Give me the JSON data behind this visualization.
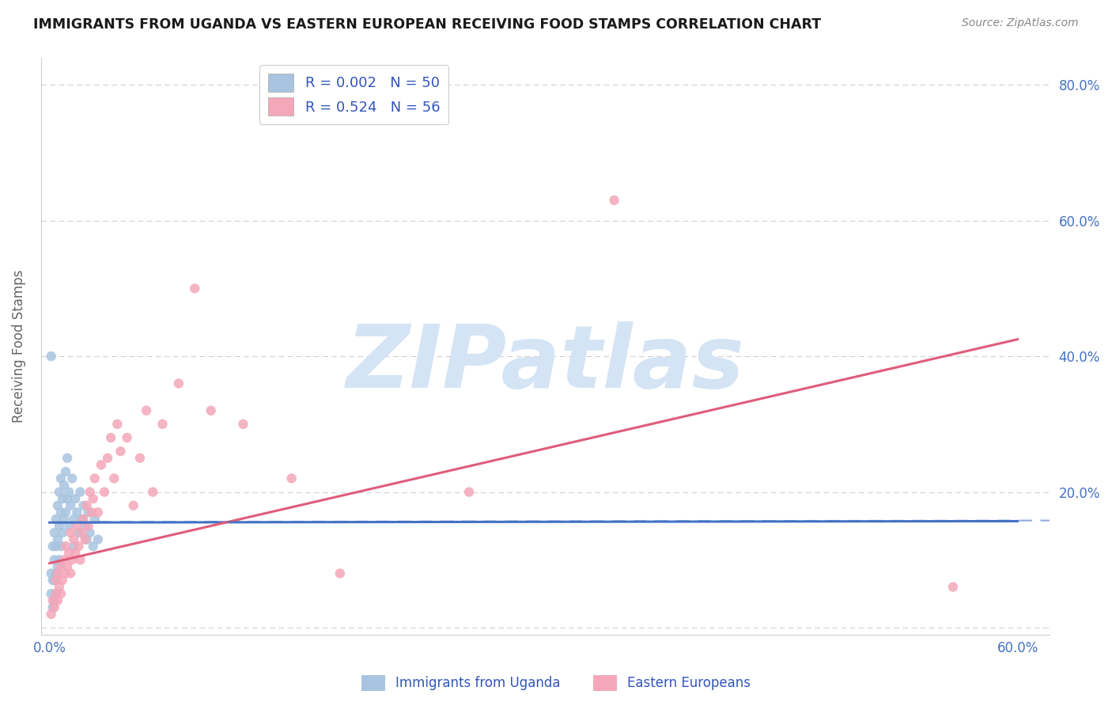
{
  "title": "IMMIGRANTS FROM UGANDA VS EASTERN EUROPEAN RECEIVING FOOD STAMPS CORRELATION CHART",
  "source": "Source: ZipAtlas.com",
  "ylabel": "Receiving Food Stamps",
  "ytick_vals": [
    0.0,
    0.2,
    0.4,
    0.6,
    0.8
  ],
  "ytick_labels": [
    "",
    "20.0%",
    "40.0%",
    "60.0%",
    "80.0%"
  ],
  "xtick_vals": [
    0.0,
    0.6
  ],
  "xtick_labels": [
    "0.0%",
    "60.0%"
  ],
  "xlim": [
    -0.005,
    0.62
  ],
  "ylim": [
    -0.01,
    0.84
  ],
  "uganda_R": 0.002,
  "uganda_N": 50,
  "eastern_R": 0.524,
  "eastern_N": 56,
  "uganda_color": "#a8c4e0",
  "eastern_color": "#f4a7b9",
  "uganda_line_color": "#4472c4",
  "eastern_line_color": "#e05c7a",
  "title_color": "#1a1a1a",
  "source_color": "#888888",
  "legend_text_color": "#3355bb",
  "axis_color": "#cccccc",
  "tick_color": "#4472c4",
  "grid_color": "#cccccc",
  "watermark_color": "#d4e4f5",
  "watermark_text": "ZIPatlas",
  "uganda_x": [
    0.001,
    0.001,
    0.002,
    0.002,
    0.002,
    0.003,
    0.003,
    0.003,
    0.003,
    0.004,
    0.004,
    0.004,
    0.004,
    0.005,
    0.005,
    0.005,
    0.006,
    0.006,
    0.006,
    0.007,
    0.007,
    0.007,
    0.008,
    0.008,
    0.009,
    0.009,
    0.01,
    0.01,
    0.011,
    0.011,
    0.012,
    0.012,
    0.013,
    0.014,
    0.015,
    0.015,
    0.016,
    0.017,
    0.018,
    0.019,
    0.02,
    0.021,
    0.022,
    0.023,
    0.024,
    0.025,
    0.027,
    0.028,
    0.03,
    0.001
  ],
  "uganda_y": [
    0.08,
    0.05,
    0.12,
    0.07,
    0.03,
    0.14,
    0.1,
    0.07,
    0.04,
    0.16,
    0.12,
    0.08,
    0.05,
    0.18,
    0.13,
    0.09,
    0.2,
    0.15,
    0.1,
    0.22,
    0.17,
    0.12,
    0.19,
    0.14,
    0.21,
    0.16,
    0.23,
    0.17,
    0.25,
    0.19,
    0.2,
    0.15,
    0.18,
    0.22,
    0.16,
    0.12,
    0.19,
    0.17,
    0.14,
    0.2,
    0.16,
    0.18,
    0.15,
    0.13,
    0.17,
    0.14,
    0.12,
    0.16,
    0.13,
    0.4
  ],
  "eastern_x": [
    0.001,
    0.002,
    0.003,
    0.004,
    0.004,
    0.005,
    0.005,
    0.006,
    0.007,
    0.007,
    0.008,
    0.009,
    0.01,
    0.01,
    0.011,
    0.012,
    0.013,
    0.013,
    0.014,
    0.015,
    0.016,
    0.017,
    0.018,
    0.019,
    0.02,
    0.021,
    0.022,
    0.023,
    0.024,
    0.025,
    0.026,
    0.027,
    0.028,
    0.03,
    0.032,
    0.034,
    0.036,
    0.038,
    0.04,
    0.042,
    0.044,
    0.048,
    0.052,
    0.056,
    0.06,
    0.064,
    0.07,
    0.08,
    0.09,
    0.1,
    0.12,
    0.15,
    0.18,
    0.26,
    0.35,
    0.56
  ],
  "eastern_y": [
    0.02,
    0.04,
    0.03,
    0.05,
    0.07,
    0.04,
    0.08,
    0.06,
    0.05,
    0.09,
    0.07,
    0.1,
    0.08,
    0.12,
    0.09,
    0.11,
    0.08,
    0.14,
    0.1,
    0.13,
    0.11,
    0.15,
    0.12,
    0.1,
    0.14,
    0.16,
    0.13,
    0.18,
    0.15,
    0.2,
    0.17,
    0.19,
    0.22,
    0.17,
    0.24,
    0.2,
    0.25,
    0.28,
    0.22,
    0.3,
    0.26,
    0.28,
    0.18,
    0.25,
    0.32,
    0.2,
    0.3,
    0.36,
    0.5,
    0.32,
    0.3,
    0.22,
    0.08,
    0.2,
    0.63,
    0.06
  ],
  "uganda_line_y0": 0.155,
  "uganda_line_y1": 0.157,
  "eastern_line_y0": 0.095,
  "eastern_line_y1": 0.425
}
